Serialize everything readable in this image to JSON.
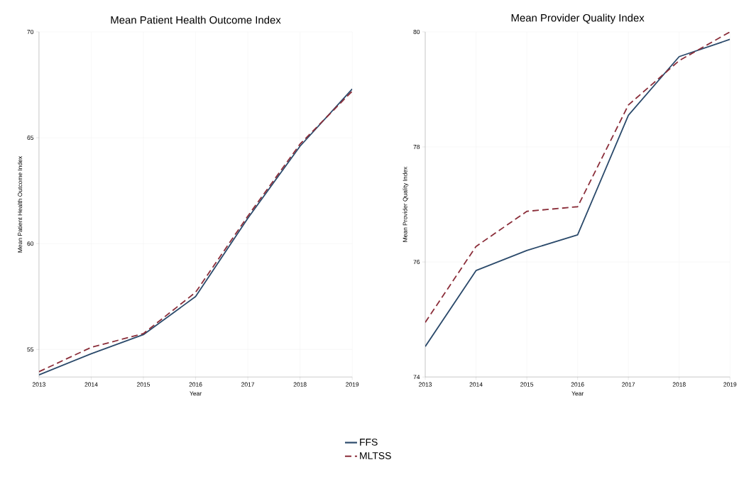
{
  "chart_data": [
    {
      "type": "line",
      "title": "Mean Patient Health Outcome Index",
      "xlabel": "Year",
      "ylabel": "Mean Patient Health Outcome Index",
      "x": [
        2013,
        2014,
        2015,
        2016,
        2017,
        2018,
        2019
      ],
      "series": [
        {
          "name": "FFS",
          "color": "#2b4a6b",
          "line_style": "solid",
          "values": [
            53.8,
            54.8,
            55.7,
            57.5,
            61.2,
            64.6,
            67.3
          ]
        },
        {
          "name": "MLTSS",
          "color": "#8b2e3a",
          "line_style": "dashed",
          "values": [
            53.95,
            55.1,
            55.75,
            57.7,
            61.3,
            64.7,
            67.2
          ]
        }
      ],
      "xlim": [
        2013,
        2019
      ],
      "ylim": [
        53.7,
        70
      ],
      "xticks": [
        2013,
        2014,
        2015,
        2016,
        2017,
        2018,
        2019
      ],
      "yticks": [
        55,
        60,
        65,
        70
      ],
      "grid": true,
      "legend": "bottom"
    },
    {
      "type": "line",
      "title": "Mean Provider Quality Index",
      "xlabel": "Year",
      "ylabel": "Mean Provider Quality Index",
      "x": [
        2013,
        2014,
        2015,
        2016,
        2017,
        2018,
        2019
      ],
      "series": [
        {
          "color": "#2b4a6b",
          "line_style": "solid",
          "values": [
            74.53,
            75.85,
            76.2,
            76.47,
            78.55,
            79.57,
            79.87
          ]
        },
        {
          "color": "#8b2e3a",
          "line_style": "dashed",
          "values": [
            74.95,
            76.27,
            76.88,
            76.96,
            78.73,
            79.5,
            80.0
          ]
        }
      ],
      "xlim": [
        2013,
        2019
      ],
      "ylim": [
        74,
        80
      ],
      "xticks": [
        2013,
        2014,
        2015,
        2016,
        2017,
        2018,
        2019
      ],
      "yticks": [
        74,
        76,
        78,
        80
      ],
      "grid": true
    }
  ]
}
